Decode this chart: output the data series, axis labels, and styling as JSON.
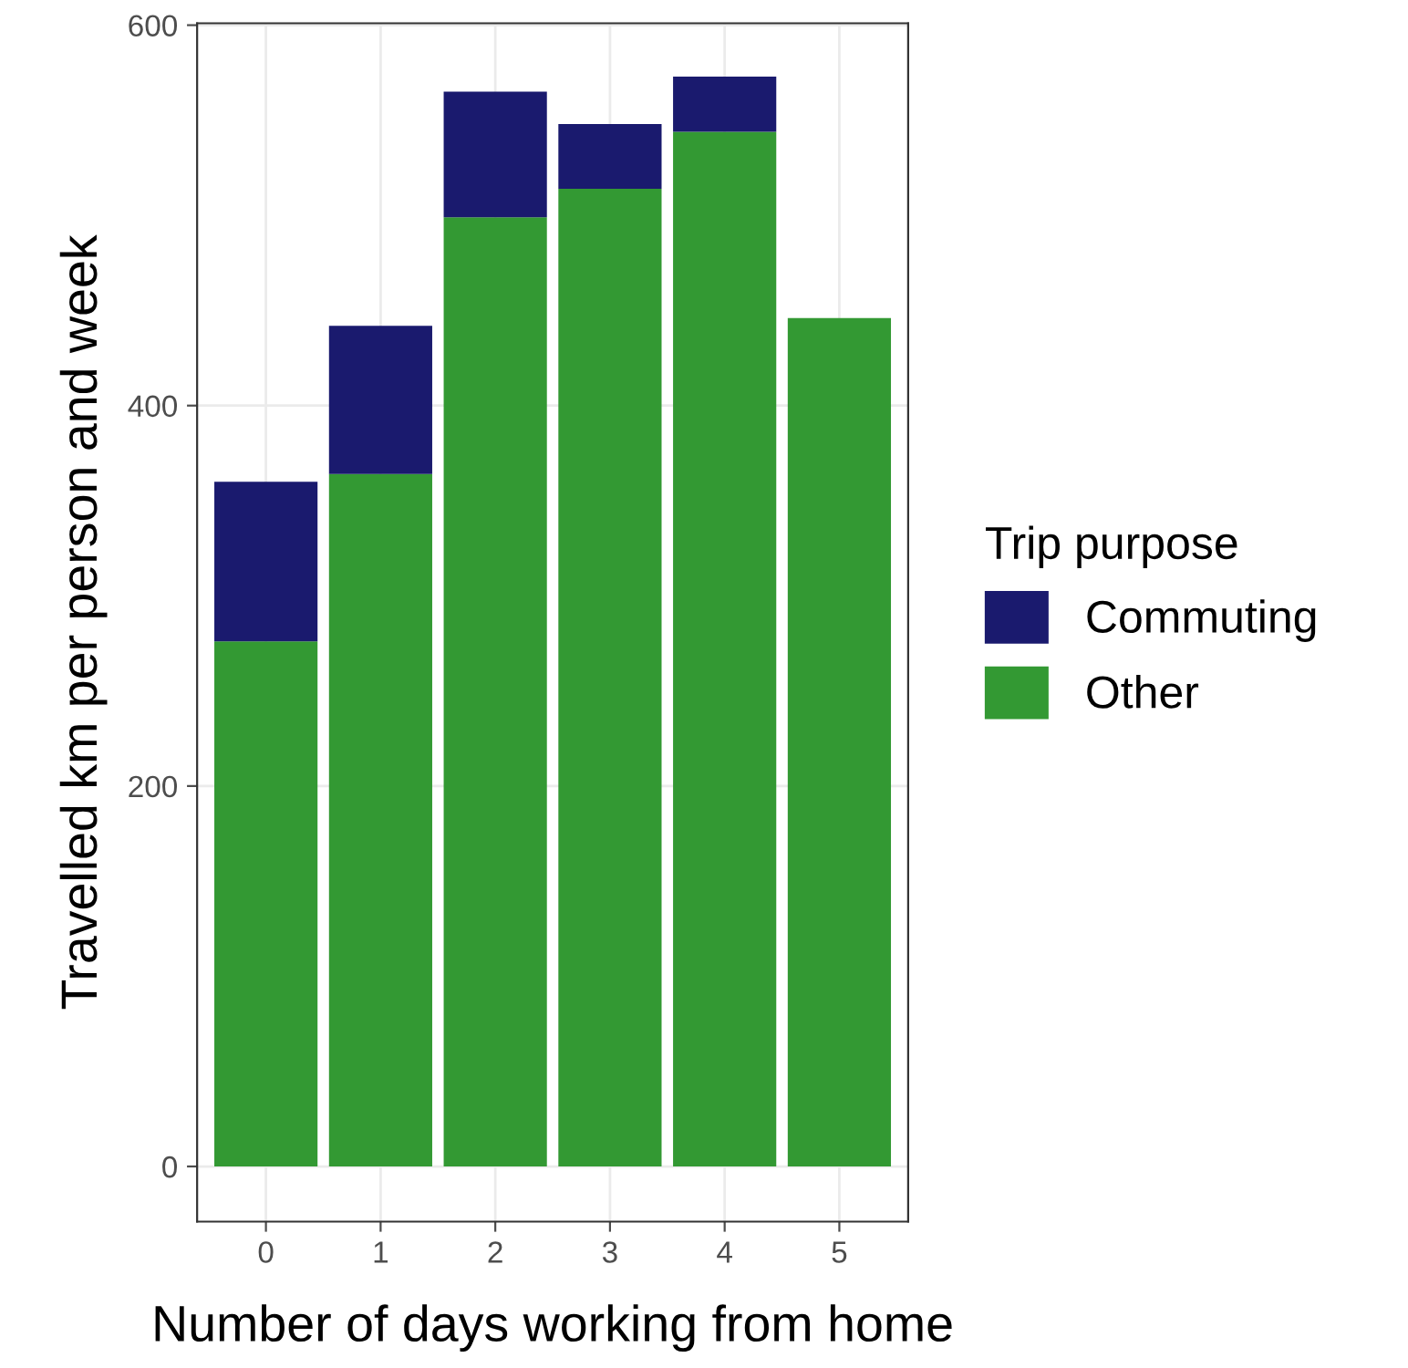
{
  "chart_data": {
    "type": "bar",
    "stacked": true,
    "xlabel": "Number of days working from home",
    "ylabel": "Travelled km per person and week",
    "legend_title": "Trip purpose",
    "legend": "right",
    "categories": [
      "0",
      "1",
      "2",
      "3",
      "4",
      "5"
    ],
    "series": [
      {
        "name": "Other",
        "color": "#339933",
        "values": [
          276,
          364,
          499,
          514,
          544,
          446
        ]
      },
      {
        "name": "Commuting",
        "color": "#1a1a6e",
        "values": [
          84,
          78,
          66,
          34,
          29,
          0
        ]
      }
    ],
    "ylim": [
      -29,
      601
    ],
    "yticks": [
      0,
      200,
      400,
      600
    ],
    "grid": true
  }
}
